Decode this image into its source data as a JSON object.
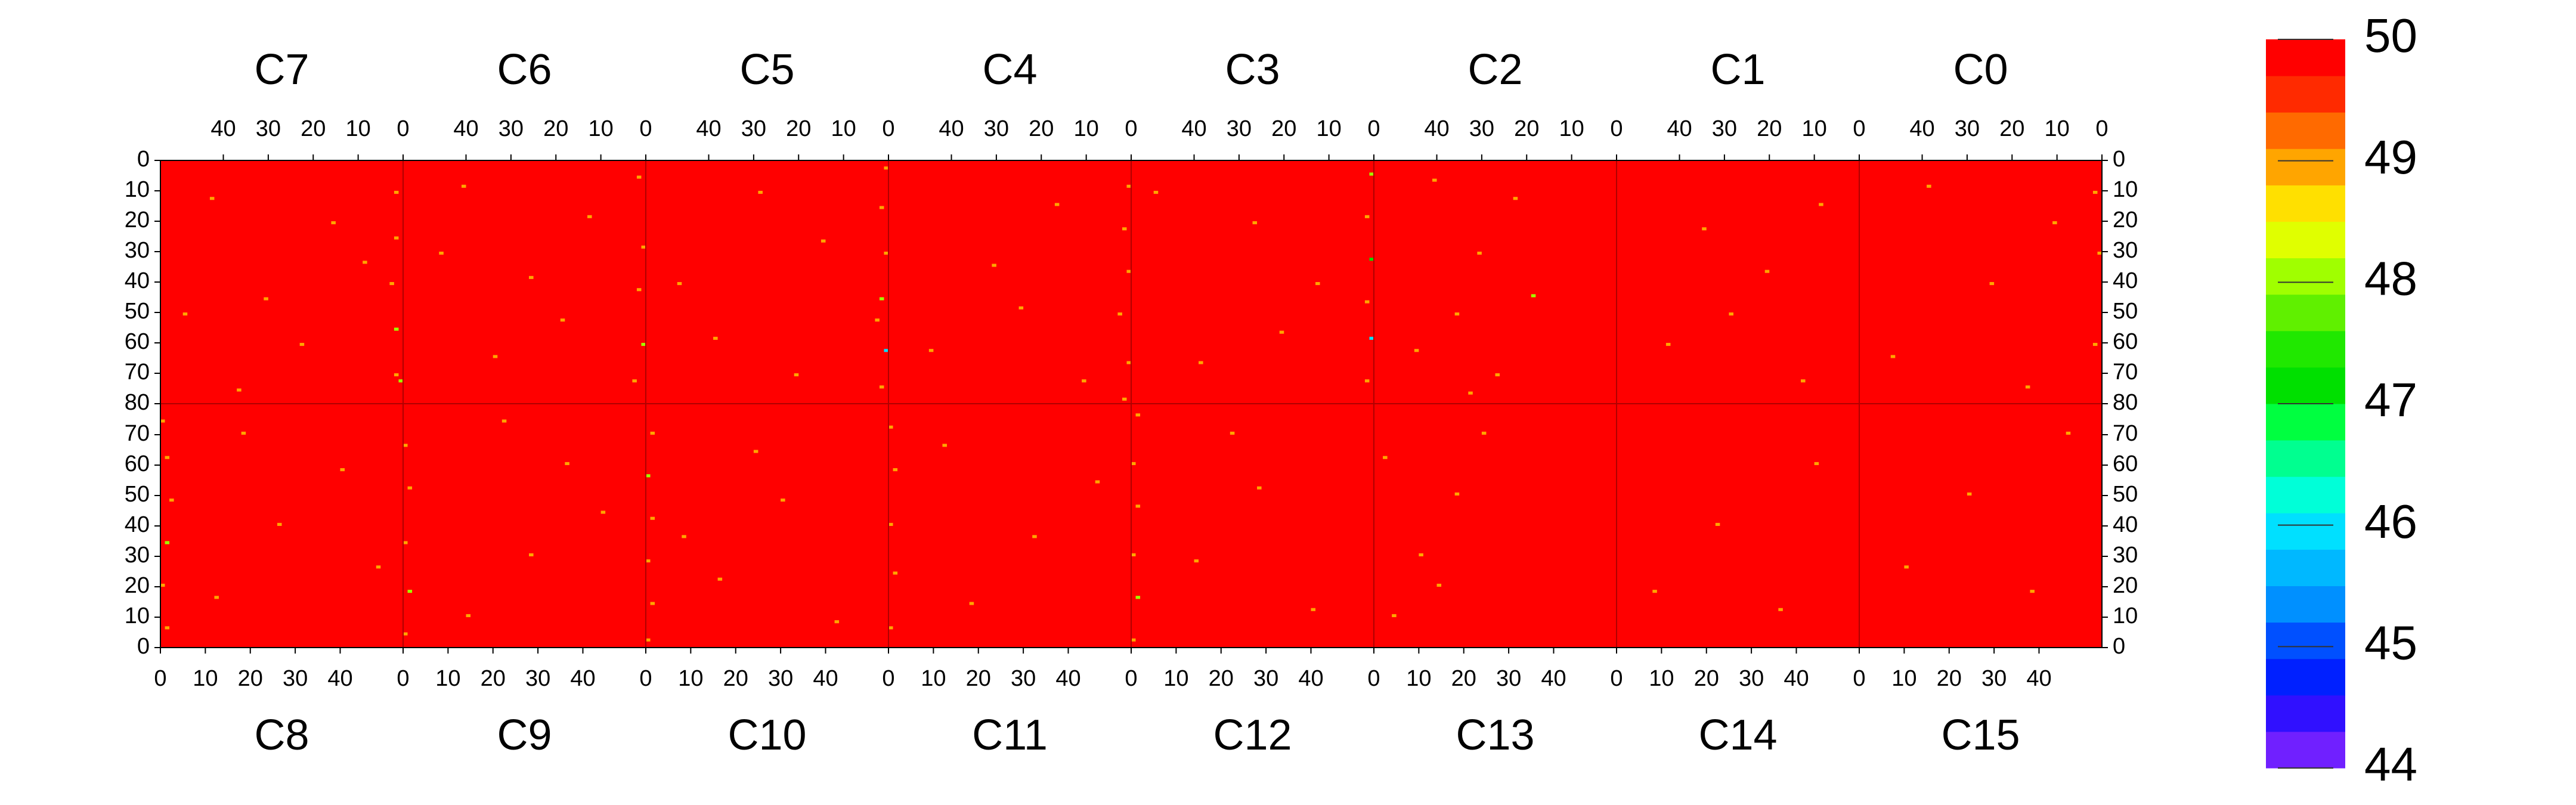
{
  "chart_data": {
    "type": "heatmap",
    "panels": [
      {
        "name": "C7",
        "fill": 50,
        "cells": [
          [
            1,
            10,
            49
          ],
          [
            1,
            25,
            49
          ],
          [
            2,
            40,
            49
          ],
          [
            1,
            55,
            48
          ],
          [
            1,
            70,
            49
          ],
          [
            0,
            72,
            48
          ],
          [
            15,
            20,
            49
          ],
          [
            30,
            45,
            49
          ],
          [
            42,
            12,
            49
          ],
          [
            22,
            60,
            49
          ],
          [
            8,
            33,
            49
          ],
          [
            36,
            75,
            49
          ],
          [
            48,
            50,
            49
          ]
        ]
      },
      {
        "name": "C6",
        "fill": 50,
        "cells": [
          [
            1,
            5,
            49
          ],
          [
            0,
            28,
            49
          ],
          [
            1,
            42,
            49
          ],
          [
            0,
            60,
            48
          ],
          [
            2,
            72,
            49
          ],
          [
            12,
            18,
            49
          ],
          [
            25,
            38,
            49
          ],
          [
            40,
            8,
            49
          ],
          [
            33,
            64,
            49
          ],
          [
            18,
            52,
            49
          ],
          [
            45,
            30,
            49
          ]
        ]
      },
      {
        "name": "C5",
        "fill": 50,
        "cells": [
          [
            0,
            2,
            49
          ],
          [
            1,
            15,
            49
          ],
          [
            0,
            30,
            49
          ],
          [
            1,
            45,
            48
          ],
          [
            0,
            62,
            46
          ],
          [
            1,
            74,
            49
          ],
          [
            2,
            52,
            49
          ],
          [
            14,
            26,
            49
          ],
          [
            28,
            10,
            49
          ],
          [
            38,
            58,
            49
          ],
          [
            20,
            70,
            49
          ],
          [
            46,
            40,
            49
          ]
        ]
      },
      {
        "name": "C4",
        "fill": 50,
        "cells": [
          [
            0,
            8,
            49
          ],
          [
            1,
            22,
            49
          ],
          [
            0,
            36,
            49
          ],
          [
            2,
            50,
            49
          ],
          [
            0,
            66,
            49
          ],
          [
            1,
            78,
            49
          ],
          [
            16,
            14,
            49
          ],
          [
            30,
            34,
            49
          ],
          [
            44,
            62,
            49
          ],
          [
            24,
            48,
            49
          ],
          [
            10,
            72,
            49
          ]
        ]
      },
      {
        "name": "C3",
        "fill": 50,
        "cells": [
          [
            0,
            4,
            48
          ],
          [
            1,
            18,
            49
          ],
          [
            0,
            32,
            47
          ],
          [
            1,
            46,
            49
          ],
          [
            0,
            58,
            46
          ],
          [
            1,
            72,
            49
          ],
          [
            12,
            40,
            49
          ],
          [
            26,
            20,
            49
          ],
          [
            38,
            66,
            49
          ],
          [
            48,
            10,
            49
          ],
          [
            20,
            56,
            49
          ]
        ]
      },
      {
        "name": "C2",
        "fill": 50,
        "cells": [
          [
            22,
            12,
            49
          ],
          [
            30,
            30,
            49
          ],
          [
            35,
            50,
            49
          ],
          [
            26,
            70,
            49
          ],
          [
            40,
            6,
            49
          ],
          [
            18,
            44,
            48
          ],
          [
            44,
            62,
            49
          ],
          [
            32,
            76,
            49
          ]
        ]
      },
      {
        "name": "C1",
        "fill": 50,
        "cells": [
          [
            8,
            14,
            49
          ],
          [
            20,
            36,
            49
          ],
          [
            34,
            22,
            49
          ],
          [
            42,
            60,
            49
          ],
          [
            12,
            72,
            49
          ],
          [
            28,
            50,
            49
          ]
        ]
      },
      {
        "name": "C0",
        "fill": 50,
        "cells": [
          [
            1,
            10,
            49
          ],
          [
            0,
            30,
            49
          ],
          [
            1,
            60,
            49
          ],
          [
            10,
            20,
            49
          ],
          [
            24,
            40,
            49
          ],
          [
            38,
            8,
            49
          ],
          [
            46,
            64,
            49
          ],
          [
            16,
            74,
            49
          ]
        ]
      },
      {
        "name": "C8",
        "fill": 50,
        "cells": [
          [
            1,
            6,
            49
          ],
          [
            0,
            20,
            49
          ],
          [
            1,
            34,
            48
          ],
          [
            2,
            48,
            49
          ],
          [
            1,
            62,
            49
          ],
          [
            0,
            74,
            49
          ],
          [
            12,
            16,
            49
          ],
          [
            26,
            40,
            49
          ],
          [
            40,
            58,
            49
          ],
          [
            48,
            26,
            49
          ],
          [
            18,
            70,
            49
          ]
        ]
      },
      {
        "name": "C9",
        "fill": 50,
        "cells": [
          [
            0,
            4,
            49
          ],
          [
            1,
            18,
            48
          ],
          [
            0,
            34,
            49
          ],
          [
            1,
            52,
            49
          ],
          [
            0,
            66,
            49
          ],
          [
            14,
            10,
            49
          ],
          [
            28,
            30,
            49
          ],
          [
            36,
            60,
            49
          ],
          [
            44,
            44,
            49
          ],
          [
            22,
            74,
            49
          ]
        ]
      },
      {
        "name": "C10",
        "fill": 50,
        "cells": [
          [
            0,
            2,
            49
          ],
          [
            1,
            14,
            49
          ],
          [
            0,
            28,
            49
          ],
          [
            1,
            42,
            49
          ],
          [
            0,
            56,
            48
          ],
          [
            1,
            70,
            49
          ],
          [
            16,
            22,
            49
          ],
          [
            30,
            48,
            49
          ],
          [
            42,
            8,
            49
          ],
          [
            24,
            64,
            49
          ],
          [
            8,
            36,
            49
          ]
        ]
      },
      {
        "name": "C11",
        "fill": 50,
        "cells": [
          [
            0,
            6,
            49
          ],
          [
            1,
            24,
            49
          ],
          [
            0,
            40,
            49
          ],
          [
            1,
            58,
            49
          ],
          [
            0,
            72,
            49
          ],
          [
            18,
            14,
            49
          ],
          [
            32,
            36,
            49
          ],
          [
            46,
            54,
            49
          ],
          [
            12,
            66,
            49
          ]
        ]
      },
      {
        "name": "C12",
        "fill": 50,
        "cells": [
          [
            0,
            2,
            49
          ],
          [
            1,
            16,
            48
          ],
          [
            0,
            30,
            49
          ],
          [
            1,
            46,
            49
          ],
          [
            0,
            60,
            49
          ],
          [
            1,
            76,
            49
          ],
          [
            14,
            28,
            49
          ],
          [
            28,
            52,
            49
          ],
          [
            40,
            12,
            49
          ],
          [
            22,
            70,
            49
          ]
        ]
      },
      {
        "name": "C13",
        "fill": 50,
        "cells": [
          [
            4,
            10,
            49
          ],
          [
            10,
            30,
            49
          ],
          [
            18,
            50,
            49
          ],
          [
            24,
            70,
            49
          ],
          [
            2,
            62,
            49
          ],
          [
            14,
            20,
            49
          ]
        ]
      },
      {
        "name": "C14",
        "fill": 50,
        "cells": [
          [
            8,
            18,
            49
          ],
          [
            22,
            40,
            49
          ],
          [
            36,
            12,
            49
          ],
          [
            44,
            60,
            49
          ]
        ]
      },
      {
        "name": "C15",
        "fill": 50,
        "cells": [
          [
            10,
            26,
            49
          ],
          [
            24,
            50,
            49
          ],
          [
            38,
            18,
            49
          ],
          [
            46,
            70,
            49
          ]
        ]
      }
    ],
    "xlim": [
      0,
      54
    ],
    "xticks": [
      0,
      10,
      20,
      30,
      40
    ],
    "ylim": [
      0,
      80
    ],
    "yticks_top": [
      0,
      10,
      20,
      30,
      40,
      50,
      60,
      70,
      80
    ],
    "yticks_bottom": [
      0,
      10,
      20,
      30,
      40,
      50,
      60,
      70
    ],
    "zlim": [
      44,
      50
    ],
    "zticks": [
      44,
      45,
      46,
      47,
      48,
      49,
      50
    ],
    "colors": [
      "#7020ff",
      "#3010ff",
      "#0020ff",
      "#0050ff",
      "#0090ff",
      "#00b8ff",
      "#00e0ff",
      "#00ffd8",
      "#00ff90",
      "#00ff40",
      "#00e000",
      "#20e800",
      "#60f000",
      "#a0ff00",
      "#e0ff00",
      "#ffe000",
      "#ffa500",
      "#ff6a00",
      "#ff2a00",
      "#ff0000"
    ]
  }
}
